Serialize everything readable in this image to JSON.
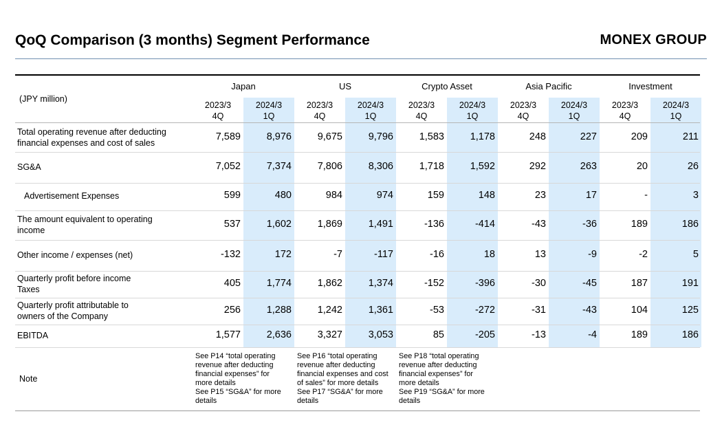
{
  "title": "QoQ Comparison (3 months) Segment Performance",
  "brand": "MONEX GROUP",
  "unit": "(JPY million)",
  "highlight_color": "#d9ecfb",
  "segments": [
    {
      "name": "Japan",
      "prev": [
        "2023/3",
        "4Q"
      ],
      "curr": [
        "2024/3",
        "1Q"
      ]
    },
    {
      "name": "US",
      "prev": [
        "2023/3",
        "4Q"
      ],
      "curr": [
        "2024/3",
        "1Q"
      ]
    },
    {
      "name": "Crypto Asset",
      "prev": [
        "2023/3",
        "4Q"
      ],
      "curr": [
        "2024/3",
        "1Q"
      ]
    },
    {
      "name": "Asia Pacific",
      "prev": [
        "2023/3",
        "4Q"
      ],
      "curr": [
        "2024/3",
        "1Q"
      ]
    },
    {
      "name": "Investment",
      "prev": [
        "2023/3",
        "4Q"
      ],
      "curr": [
        "2024/3",
        "1Q"
      ]
    }
  ],
  "rows": [
    {
      "label": [
        "Total operating revenue after deducting",
        "financial expenses and cost of sales"
      ],
      "values": [
        "7,589",
        "8,976",
        "9,675",
        "9,796",
        "1,583",
        "1,178",
        "248",
        "227",
        "209",
        "211"
      ]
    },
    {
      "label": [
        "SG&A"
      ],
      "values": [
        "7,052",
        "7,374",
        "7,806",
        "8,306",
        "1,718",
        "1,592",
        "292",
        "263",
        "20",
        "26"
      ]
    },
    {
      "label": [
        "Advertisement Expenses"
      ],
      "values": [
        "599",
        "480",
        "984",
        "974",
        "159",
        "148",
        "23",
        "17",
        "-",
        "3"
      ]
    },
    {
      "label": [
        "The amount equivalent to operating",
        "income"
      ],
      "values": [
        "537",
        "1,602",
        "1,869",
        "1,491",
        "-136",
        "-414",
        "-43",
        "-36",
        "189",
        "186"
      ]
    },
    {
      "label": [
        "Other income / expenses (net)"
      ],
      "values": [
        "-132",
        "172",
        "-7",
        "-117",
        "-16",
        "18",
        "13",
        "-9",
        "-2",
        "5"
      ]
    },
    {
      "label": [
        "Quarterly profit before income",
        "Taxes"
      ],
      "values": [
        "405",
        "1,774",
        "1,862",
        "1,374",
        "-152",
        "-396",
        "-30",
        "-45",
        "187",
        "191"
      ]
    },
    {
      "label": [
        "Quarterly profit attributable to",
        "owners of the Company"
      ],
      "values": [
        "256",
        "1,288",
        "1,242",
        "1,361",
        "-53",
        "-272",
        "-31",
        "-43",
        "104",
        "125"
      ]
    },
    {
      "label": [
        "EBITDA"
      ],
      "values": [
        "1,577",
        "2,636",
        "3,327",
        "3,053",
        "85",
        "-205",
        "-13",
        "-4",
        "189",
        "186"
      ]
    }
  ],
  "note_label": "Note",
  "notes": [
    [
      "See P14 “total operating",
      "revenue after deducting",
      "financial expenses” for",
      "more details",
      "See P15 “SG&A” for more",
      "details"
    ],
    [
      "See P16 “total operating",
      "revenue after deducting",
      "financial expenses and cost",
      "of sales” for more details",
      "See P17 “SG&A” for more",
      "details"
    ],
    [
      "See P18 “total operating",
      "revenue after deducting",
      "financial expenses” for",
      "more details",
      "See P19 “SG&A” for more",
      "details"
    ]
  ]
}
